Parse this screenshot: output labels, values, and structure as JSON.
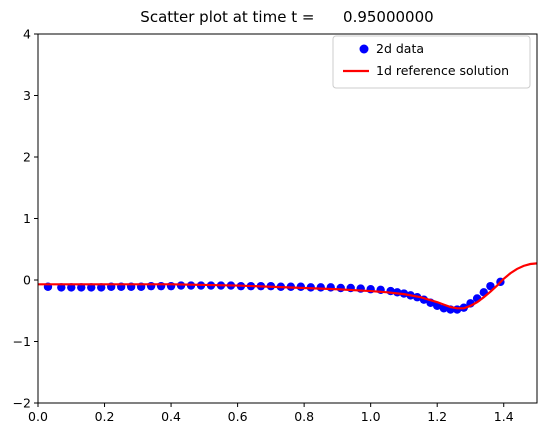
{
  "chart_data": {
    "type": "scatter",
    "title": "Scatter plot at time t =      0.95000000",
    "xlabel": "",
    "ylabel": "",
    "xlim": [
      0.0,
      1.5
    ],
    "ylim": [
      -2,
      4
    ],
    "x_ticks": [
      "0.0",
      "0.2",
      "0.4",
      "0.6",
      "0.8",
      "1.0",
      "1.2",
      "1.4"
    ],
    "y_ticks": [
      "-2",
      "-1",
      "0",
      "1",
      "2",
      "3",
      "4"
    ],
    "grid": false,
    "legend_position": "top-right",
    "series": [
      {
        "name": "2d data",
        "kind": "scatter",
        "color": "#0000ff",
        "x": [
          0.03,
          0.07,
          0.1,
          0.13,
          0.16,
          0.19,
          0.22,
          0.25,
          0.28,
          0.31,
          0.34,
          0.37,
          0.4,
          0.43,
          0.46,
          0.49,
          0.52,
          0.55,
          0.58,
          0.61,
          0.64,
          0.67,
          0.7,
          0.73,
          0.76,
          0.79,
          0.82,
          0.85,
          0.88,
          0.91,
          0.94,
          0.97,
          1.0,
          1.03,
          1.06,
          1.08,
          1.1,
          1.12,
          1.14,
          1.16,
          1.18,
          1.2,
          1.22,
          1.24,
          1.26,
          1.28,
          1.3,
          1.32,
          1.34,
          1.36,
          1.39
        ],
        "y": [
          -0.11,
          -0.12,
          -0.12,
          -0.12,
          -0.12,
          -0.12,
          -0.11,
          -0.11,
          -0.11,
          -0.11,
          -0.1,
          -0.1,
          -0.1,
          -0.09,
          -0.09,
          -0.09,
          -0.09,
          -0.09,
          -0.09,
          -0.1,
          -0.1,
          -0.1,
          -0.1,
          -0.11,
          -0.11,
          -0.11,
          -0.12,
          -0.12,
          -0.12,
          -0.13,
          -0.13,
          -0.14,
          -0.15,
          -0.16,
          -0.18,
          -0.2,
          -0.22,
          -0.25,
          -0.28,
          -0.32,
          -0.37,
          -0.42,
          -0.46,
          -0.48,
          -0.48,
          -0.45,
          -0.38,
          -0.3,
          -0.2,
          -0.1,
          -0.03
        ]
      },
      {
        "name": "1d reference solution",
        "kind": "line",
        "color": "#ff0000",
        "x": [
          0.0,
          0.1,
          0.2,
          0.3,
          0.4,
          0.5,
          0.6,
          0.7,
          0.8,
          0.9,
          1.0,
          1.05,
          1.1,
          1.15,
          1.2,
          1.22,
          1.24,
          1.26,
          1.28,
          1.3,
          1.32,
          1.34,
          1.36,
          1.38,
          1.4,
          1.42,
          1.44,
          1.46,
          1.48,
          1.5
        ],
        "y": [
          -0.07,
          -0.07,
          -0.07,
          -0.07,
          -0.07,
          -0.08,
          -0.09,
          -0.11,
          -0.13,
          -0.15,
          -0.18,
          -0.2,
          -0.23,
          -0.28,
          -0.36,
          -0.4,
          -0.44,
          -0.46,
          -0.46,
          -0.42,
          -0.36,
          -0.28,
          -0.19,
          -0.09,
          0.02,
          0.11,
          0.18,
          0.23,
          0.26,
          0.27
        ]
      }
    ]
  }
}
